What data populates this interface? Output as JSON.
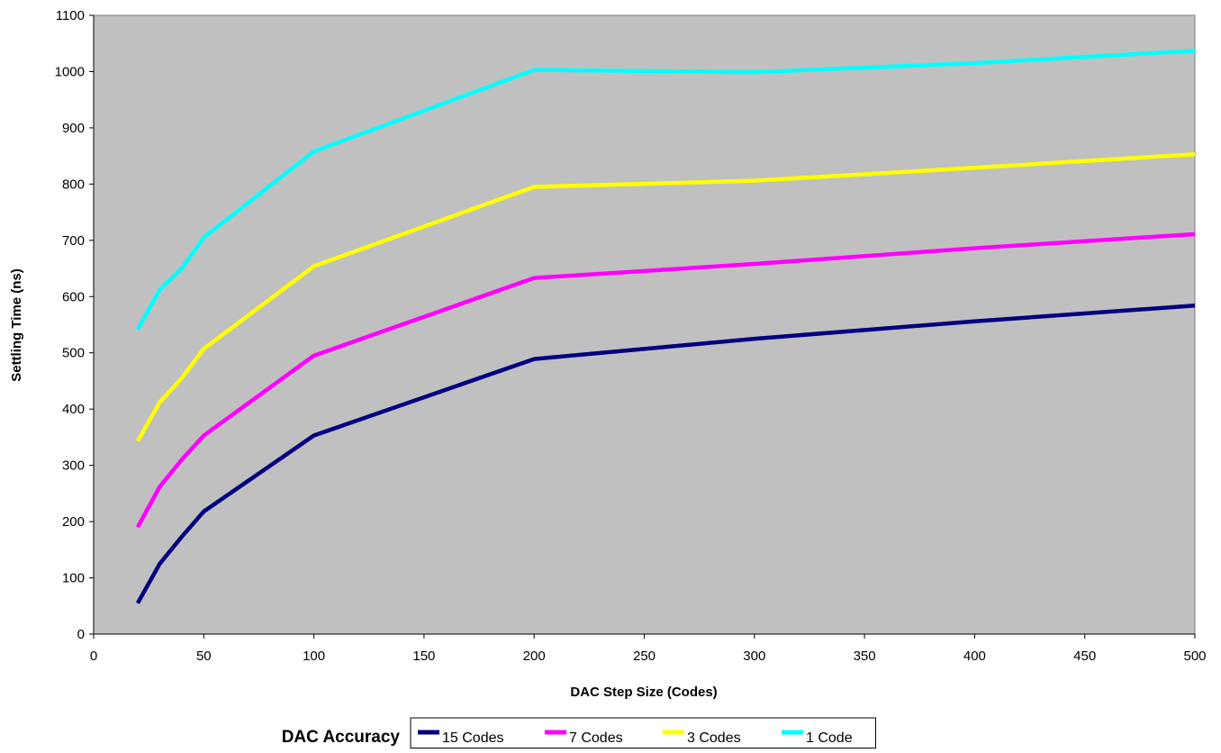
{
  "chart_data": {
    "type": "line",
    "title": "",
    "xlabel": "DAC Step Size (Codes)",
    "ylabel": "Settling Time (ns)",
    "xlim": [
      0,
      500
    ],
    "ylim": [
      0,
      1100
    ],
    "xticks": [
      0,
      50,
      100,
      150,
      200,
      250,
      300,
      350,
      400,
      450,
      500
    ],
    "yticks": [
      0,
      100,
      200,
      300,
      400,
      500,
      600,
      700,
      800,
      900,
      1000,
      1100
    ],
    "plot_background": "#C0C0C0",
    "grid": false,
    "legend": {
      "title": "DAC Accuracy",
      "placement": "bottom-center"
    },
    "series": [
      {
        "name": "15 Codes",
        "color": "#000080",
        "x": [
          20,
          30,
          40,
          50,
          100,
          200,
          300,
          400,
          500
        ],
        "y": [
          55,
          125,
          173,
          218,
          353,
          489,
          525,
          556,
          584
        ]
      },
      {
        "name": "7 Codes",
        "color": "#FF00FF",
        "x": [
          20,
          30,
          40,
          50,
          100,
          200,
          300,
          400,
          500
        ],
        "y": [
          190,
          262,
          310,
          353,
          495,
          633,
          658,
          686,
          711
        ]
      },
      {
        "name": "3 Codes",
        "color": "#FFFF00",
        "x": [
          20,
          30,
          40,
          50,
          100,
          200,
          300,
          400,
          500
        ],
        "y": [
          343,
          412,
          455,
          507,
          654,
          795,
          806,
          829,
          853
        ]
      },
      {
        "name": "1 Code",
        "color": "#00FFFF",
        "x": [
          20,
          30,
          40,
          50,
          100,
          200,
          300,
          400,
          500
        ],
        "y": [
          542,
          612,
          650,
          705,
          858,
          1003,
          999,
          1015,
          1037
        ]
      }
    ]
  }
}
